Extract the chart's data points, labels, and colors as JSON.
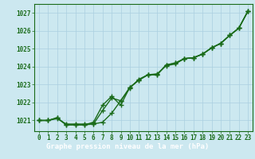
{
  "x": [
    0,
    1,
    2,
    3,
    4,
    5,
    6,
    7,
    8,
    9,
    10,
    11,
    12,
    13,
    14,
    15,
    16,
    17,
    18,
    19,
    20,
    21,
    22,
    23
  ],
  "line1": [
    1021.0,
    1021.0,
    1021.1,
    1020.8,
    1020.8,
    1020.8,
    1020.8,
    1020.9,
    1021.4,
    1022.1,
    1022.8,
    1023.3,
    1023.55,
    1023.6,
    1024.05,
    1024.15,
    1024.45,
    1024.5,
    1024.7,
    1025.05,
    1025.3,
    1025.75,
    1026.15,
    1027.1
  ],
  "line2": [
    1021.0,
    1021.0,
    1021.15,
    1020.75,
    1020.75,
    1020.75,
    1020.8,
    1021.55,
    1022.25,
    1022.1,
    1022.85,
    1023.25,
    1023.55,
    1023.55,
    1024.1,
    1024.2,
    1024.45,
    1024.5,
    1024.7,
    1025.05,
    1025.3,
    1025.75,
    1026.15,
    1027.1
  ],
  "line3": [
    1021.0,
    1021.0,
    1021.15,
    1020.75,
    1020.75,
    1020.75,
    1020.9,
    1021.85,
    1022.35,
    1021.85,
    1022.85,
    1023.25,
    1023.55,
    1023.55,
    1024.1,
    1024.2,
    1024.45,
    1024.5,
    1024.7,
    1025.05,
    1025.3,
    1025.75,
    1026.15,
    1027.1
  ],
  "ylim": [
    1020.4,
    1027.5
  ],
  "yticks": [
    1021,
    1022,
    1023,
    1024,
    1025,
    1026,
    1027
  ],
  "xticks": [
    0,
    1,
    2,
    3,
    4,
    5,
    6,
    7,
    8,
    9,
    10,
    11,
    12,
    13,
    14,
    15,
    16,
    17,
    18,
    19,
    20,
    21,
    22,
    23
  ],
  "xlabel": "Graphe pression niveau de la mer (hPa)",
  "line_color": "#1a6b1a",
  "marker": "+",
  "marker_size": 5,
  "bg_color": "#cce8f0",
  "grid_color": "#aacfe0",
  "label_color": "#1a6b1a",
  "banner_bg": "#1a6b1a",
  "banner_fg": "#ffffff",
  "linewidth": 1.0,
  "tick_fontsize": 5.5,
  "label_fontsize": 6.5
}
